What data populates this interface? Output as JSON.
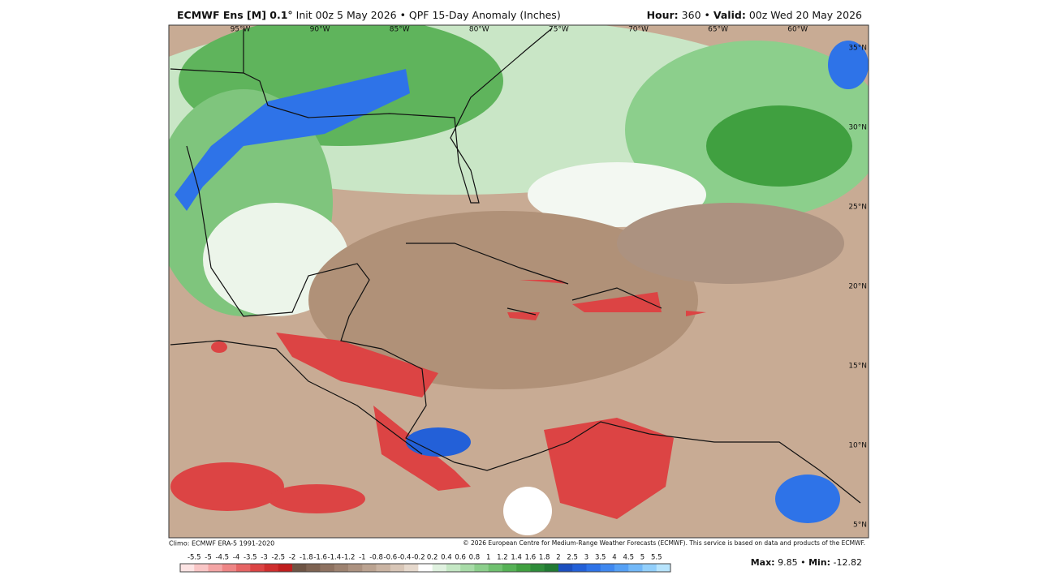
{
  "header": {
    "title_bold": "ECMWF Ens [M] 0.1°",
    "title_rest": "Init 00z 5 May 2026 • QPF 15-Day Anomaly (Inches)",
    "hour_label": "Hour:",
    "hour": "360 •",
    "valid_label": "Valid:",
    "valid": "00z Wed 20 May 2026"
  },
  "lon_labels": [
    "95°W",
    "90°W",
    "85°W",
    "80°W",
    "75°W",
    "70°W",
    "65°W",
    "60°W"
  ],
  "lat_labels": [
    "35°N",
    "30°N",
    "25°N",
    "20°N",
    "15°N",
    "10°N",
    "5°N"
  ],
  "footer": {
    "climo": "Climo: ECMWF ERA-5 1991-2020",
    "copyright": "© 2026 European Centre for Medium-Range Weather Forecasts (ECMWF). This service is based on data and products of the ECMWF."
  },
  "colorbar": {
    "labels": [
      "-5.5",
      "-5",
      "-4.5",
      "-4",
      "-3.5",
      "-3",
      "-2.5",
      "-2",
      "-1.8",
      "-1.6",
      "-1.4",
      "-1.2",
      "-1",
      "-0.8",
      "-0.6",
      "-0.4",
      "-0.2",
      "0.2",
      "0.4",
      "0.6",
      "0.8",
      "1",
      "1.2",
      "1.4",
      "1.6",
      "1.8",
      "2",
      "2.5",
      "3",
      "3.5",
      "4",
      "4.5",
      "5",
      "5.5"
    ],
    "colors": [
      "#fde4e4",
      "#f9c6c6",
      "#f4a5a5",
      "#ee8585",
      "#e66464",
      "#dc4444",
      "#cf2e2e",
      "#c01e1e",
      "#6e5444",
      "#7e6352",
      "#8e7261",
      "#9d8270",
      "#ac9280",
      "#bba391",
      "#cab4a3",
      "#d8c6b7",
      "#e6d9cd",
      "#ffffff",
      "#e0f2e0",
      "#c5e8c5",
      "#a8dca8",
      "#8ccf8c",
      "#70c170",
      "#56b256",
      "#40a040",
      "#2e8c3a",
      "#217a33",
      "#1c4fbf",
      "#2360d8",
      "#2e73e8",
      "#3f88f0",
      "#55a0f5",
      "#72b8f8",
      "#92cffb",
      "#b7e4fd"
    ]
  },
  "stats": {
    "max_label": "Max:",
    "max": "9.85 •",
    "min_label": "Min:",
    "min": "-12.82"
  }
}
